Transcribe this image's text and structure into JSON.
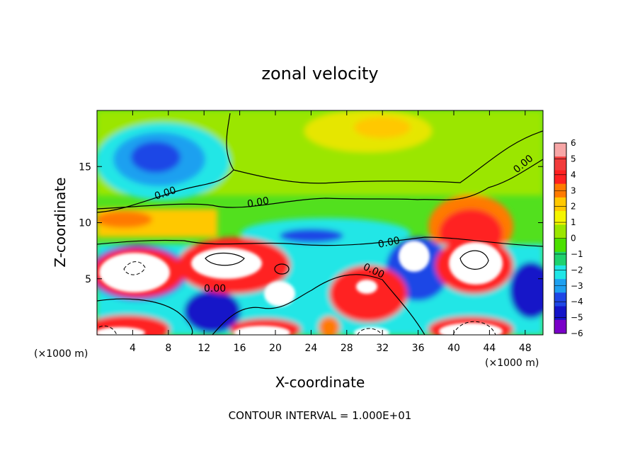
{
  "chart_data": {
    "type": "heatmap",
    "title": "zonal velocity",
    "xlabel": "X-coordinate",
    "ylabel": "Z-coordinate",
    "x_unit_left": "(×1000 m)",
    "x_unit_right": "(×1000 m)",
    "xlim": [
      0,
      50
    ],
    "ylim": [
      0,
      20
    ],
    "x_ticks": [
      4,
      8,
      12,
      16,
      20,
      24,
      28,
      32,
      36,
      40,
      44,
      48
    ],
    "y_ticks": [
      5,
      10,
      15
    ],
    "colorbar": {
      "min": -6,
      "max": 6,
      "ticks": [
        "6",
        "5",
        "4",
        "3",
        "2",
        "1",
        "0",
        "−1",
        "−2",
        "−3",
        "−4",
        "−5",
        "−6"
      ],
      "colors": [
        "#f7a6a6",
        "#f23c3c",
        "#ff2020",
        "#ff7a00",
        "#ffc800",
        "#f5f500",
        "#9be600",
        "#4be000",
        "#1fd26e",
        "#20e6e6",
        "#1ea0f0",
        "#1e46e6",
        "#1414c8",
        "#7a00c8"
      ]
    },
    "contour_labels": [
      "0.00",
      "0.00",
      "0.00",
      "0.00",
      "0.00",
      "0.00"
    ],
    "footer": "CONTOUR INTERVAL = 1.000E+01"
  },
  "colors": {
    "background": "#52e01e",
    "upper": "#9be600",
    "over_range": "#ffffff"
  }
}
